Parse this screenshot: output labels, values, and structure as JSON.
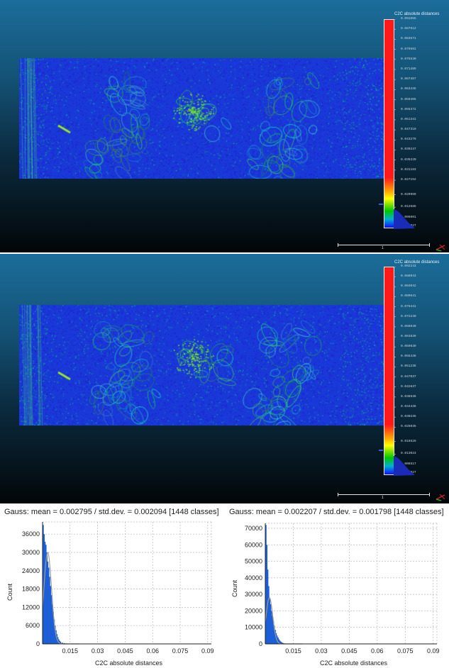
{
  "views": [
    {
      "colorbar_title": "C2C absolute distances",
      "colorbar_ticks": [
        "0.091655",
        "0.087612",
        "0.083571",
        "0.079591",
        "0.075530",
        "0.071489",
        "0.067467",
        "0.063435",
        "0.059405",
        "0.055372",
        "0.051341",
        "0.047310",
        "0.043279",
        "0.039247",
        "0.035220",
        "0.031183",
        "0.027152",
        "0.020969",
        "0.012585",
        "0.006001",
        "0.000027"
      ],
      "scale_value": "1"
    },
    {
      "colorbar_title": "C2C absolute distances",
      "colorbar_ticks": [
        "0.092243",
        "0.088043",
        "0.084042",
        "0.080641",
        "0.076441",
        "0.072240",
        "0.068040",
        "0.063839",
        "0.059639",
        "0.055438",
        "0.051238",
        "0.047037",
        "0.042837",
        "0.038636",
        "0.034436",
        "0.030235",
        "0.026035",
        "0.019529",
        "0.013023",
        "0.006517",
        "0.000027"
      ],
      "scale_value": "1"
    }
  ],
  "histograms": [
    {
      "title": "Gauss: mean = 0.002795 / std.dev. = 0.002094 [1448 classes]"
    },
    {
      "title": "Gauss: mean = 0.002207 / std.dev. = 0.001798 [1448 classes]"
    }
  ],
  "colors": {
    "bar_fill": "#1c5fd6",
    "gauss_curve": "#9a9a9a",
    "grid": "#b8b8b8"
  },
  "chart_data": [
    {
      "type": "bar",
      "title": "Gauss: mean = 0.002795 / std.dev. = 0.002094 [1448 classes]",
      "xlabel": "C2C absolute distances",
      "ylabel": "Count",
      "xlim": [
        0,
        0.092
      ],
      "ylim": [
        0,
        40000
      ],
      "xticks": [
        "0.015",
        "0.03",
        "0.045",
        "0.06",
        "0.075",
        "0.09"
      ],
      "yticks": [
        "0",
        "6000",
        "12000",
        "18000",
        "24000",
        "30000",
        "36000"
      ],
      "x": [
        0.0005,
        0.001,
        0.0015,
        0.002,
        0.0025,
        0.003,
        0.0035,
        0.004,
        0.0045,
        0.005,
        0.0055,
        0.006,
        0.0065,
        0.007,
        0.0075,
        0.008,
        0.0085,
        0.009,
        0.0095,
        0.01,
        0.011,
        0.012,
        0.013,
        0.014
      ],
      "values": [
        39000,
        36000,
        33500,
        32500,
        30000,
        27000,
        25000,
        22000,
        19000,
        16000,
        13000,
        10500,
        8000,
        6000,
        4500,
        3200,
        2200,
        1500,
        1000,
        700,
        400,
        250,
        150,
        80
      ],
      "gauss_curve": {
        "mean": 0.002795,
        "std": 0.002094,
        "peak": 30000
      },
      "grid": true
    },
    {
      "type": "bar",
      "title": "Gauss: mean = 0.002207 / std.dev. = 0.001798 [1448 classes]",
      "xlabel": "C2C absolute distances",
      "ylabel": "Count",
      "xlim": [
        0,
        0.092
      ],
      "ylim": [
        0,
        73000
      ],
      "xticks": [
        "0.015",
        "0.03",
        "0.045",
        "0.06",
        "0.075",
        "0.09"
      ],
      "yticks": [
        "0",
        "10000",
        "20000",
        "30000",
        "40000",
        "50000",
        "60000",
        "70000"
      ],
      "x": [
        0.0005,
        0.001,
        0.0015,
        0.002,
        0.0025,
        0.003,
        0.0035,
        0.004,
        0.0045,
        0.005,
        0.0055,
        0.006,
        0.0065,
        0.007,
        0.0075,
        0.008,
        0.0085,
        0.009,
        0.0095,
        0.01,
        0.011,
        0.012,
        0.013
      ],
      "values": [
        72000,
        60000,
        45000,
        35000,
        28000,
        24000,
        20000,
        17000,
        14000,
        11000,
        8500,
        6500,
        5000,
        3800,
        2800,
        2000,
        1400,
        950,
        650,
        420,
        250,
        140,
        70
      ],
      "gauss_curve": {
        "mean": 0.002207,
        "std": 0.001798,
        "peak": 28000
      },
      "grid": true
    }
  ]
}
